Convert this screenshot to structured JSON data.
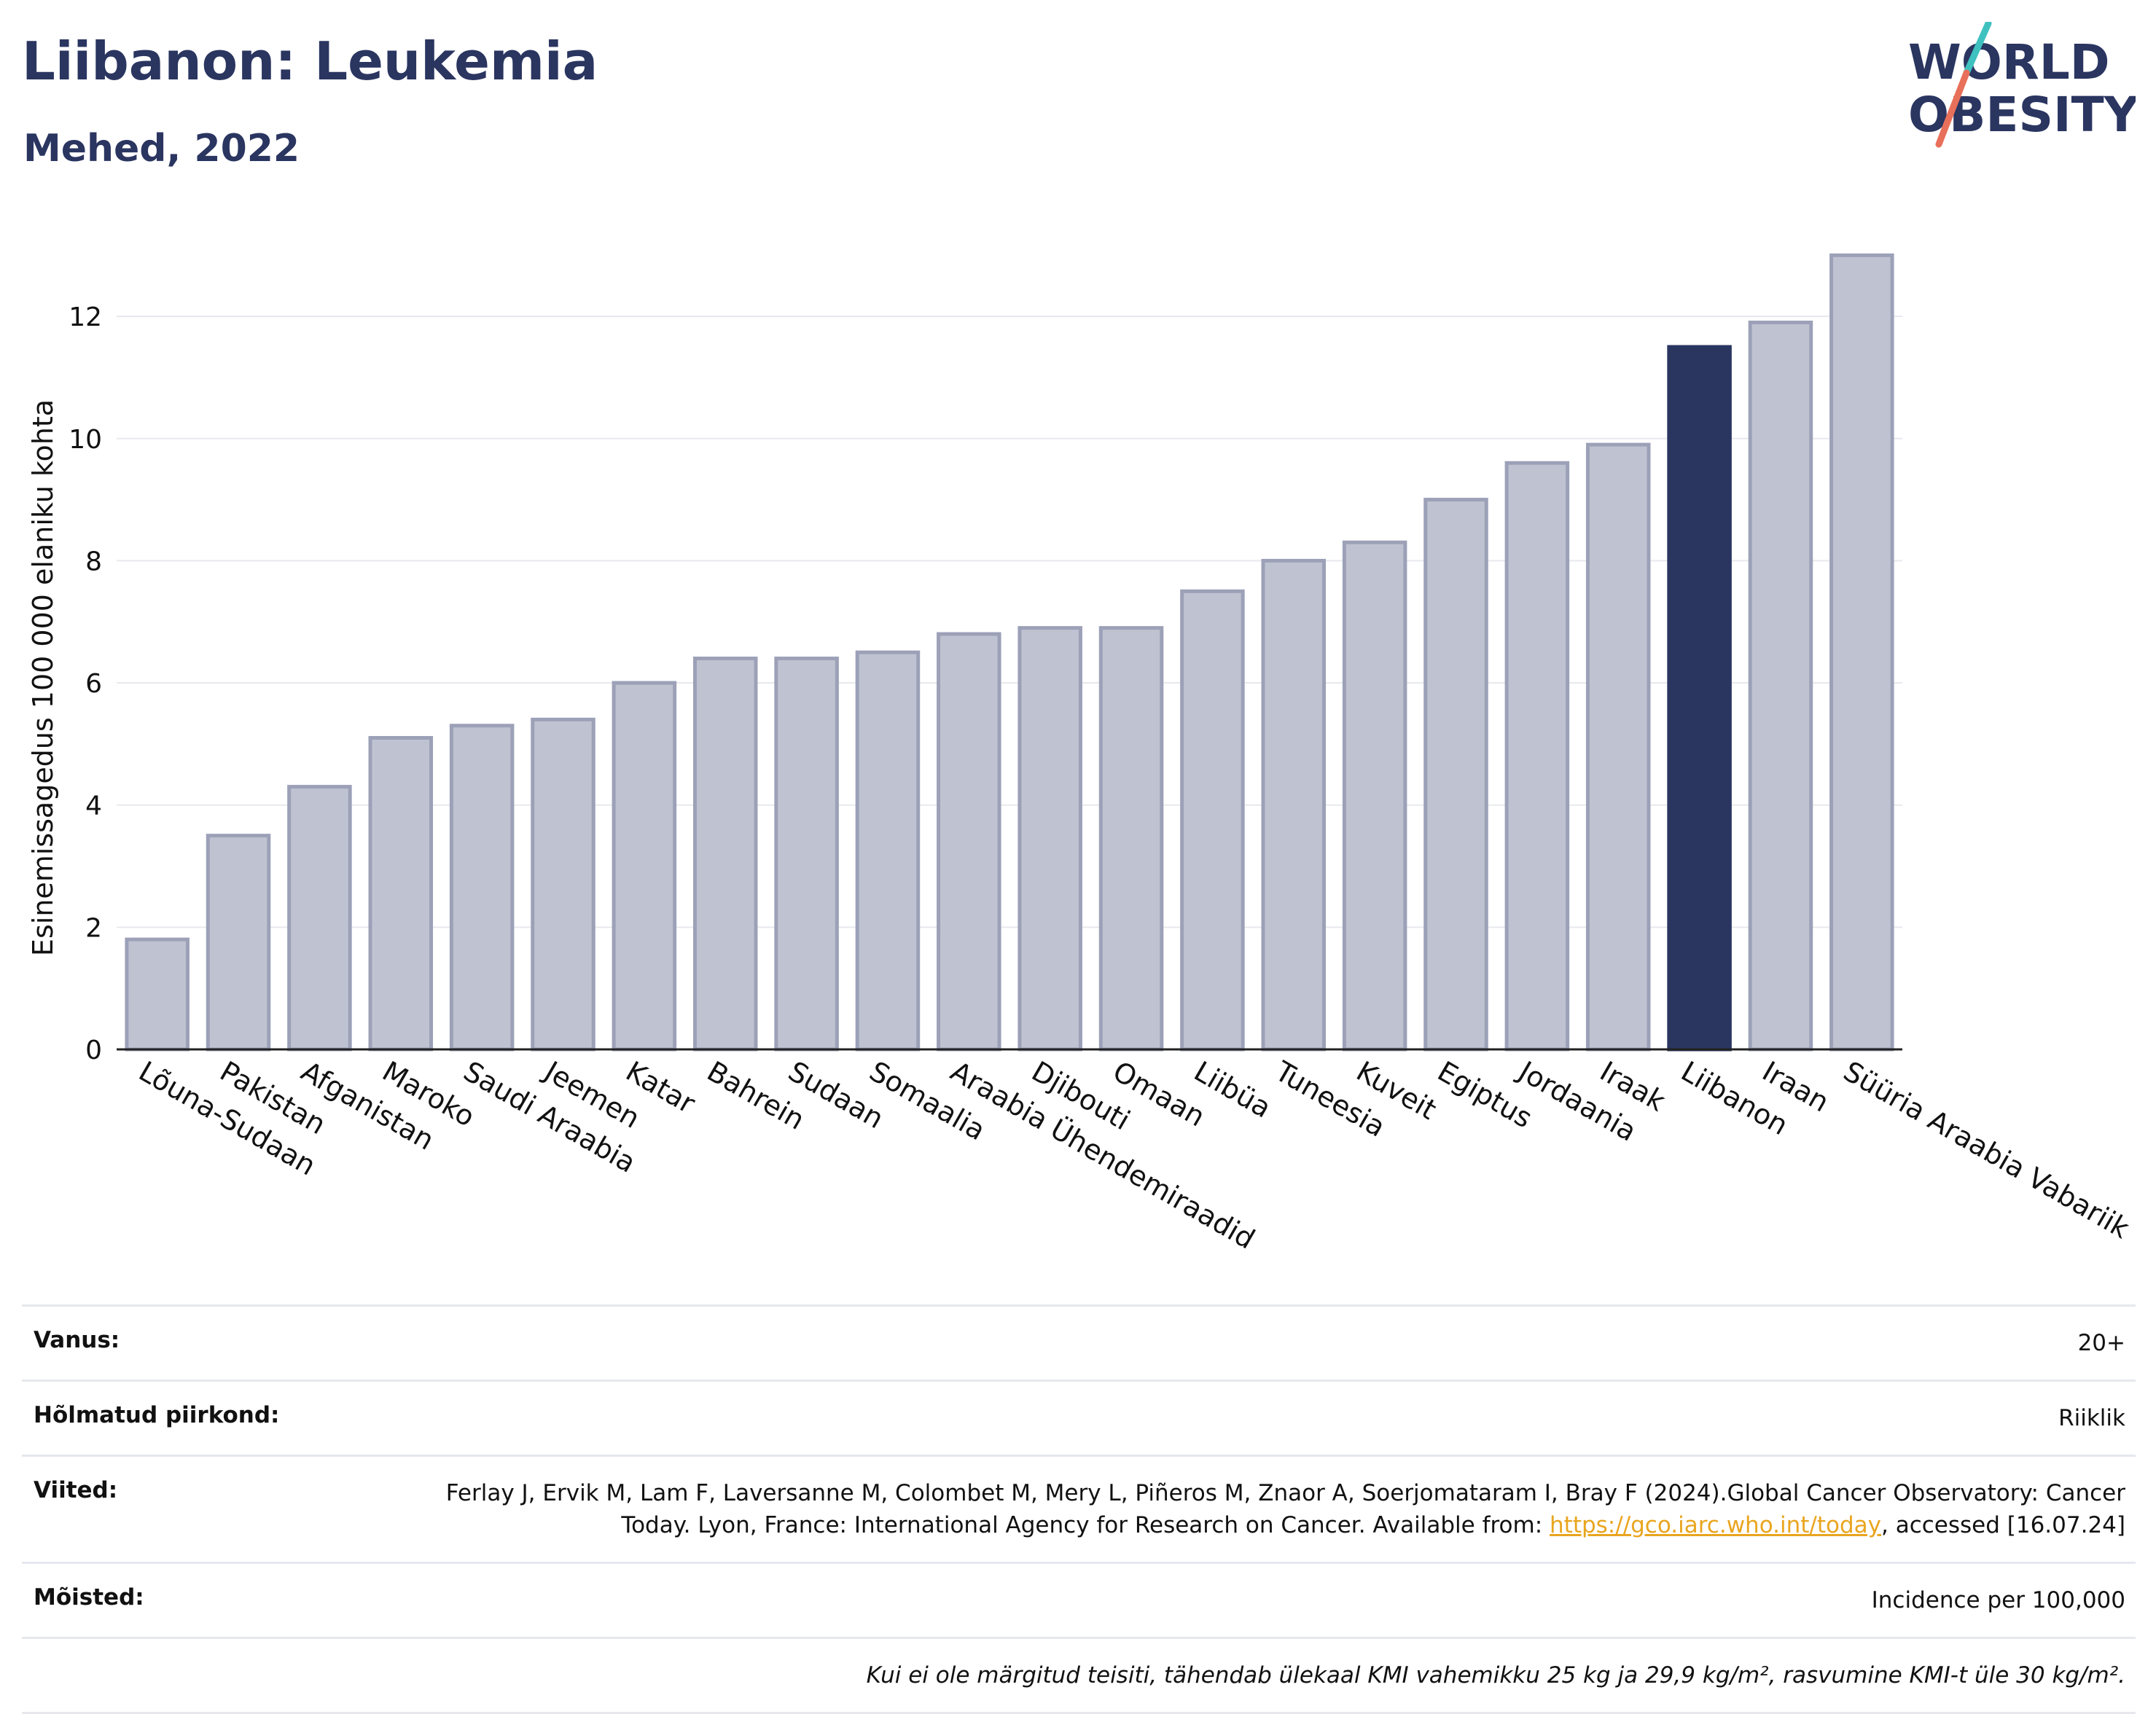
{
  "header": {
    "title": "Liibanon: Leukemia",
    "subtitle": "Mehed, 2022"
  },
  "logo": {
    "line1": "WORLD",
    "line2": "OBESITY",
    "colors": {
      "text": "#2a3560",
      "slash_teal": "#3fc1c0",
      "slash_coral": "#e8705a"
    }
  },
  "chart_data": {
    "type": "bar",
    "ylabel": "Esinemissagedus 100 000 elaniku kohta",
    "ylim": [
      0,
      13.6
    ],
    "yticks": [
      0,
      2,
      4,
      6,
      8,
      10,
      12
    ],
    "grid": true,
    "highlight": "Liibanon",
    "colors": {
      "bar": "#bfc3d1",
      "bar_edge": "#9ca1b8",
      "highlight": "#2a3560"
    },
    "categories": [
      "Lõuna-Sudaan",
      "Pakistan",
      "Afganistan",
      "Maroko",
      "Saudi Araabia",
      "Jeemen",
      "Katar",
      "Bahrein",
      "Sudaan",
      "Somaalia",
      "Araabia Ühendemiraadid",
      "Djibouti",
      "Omaan",
      "Liibüa",
      "Tuneesia",
      "Kuveit",
      "Egiptus",
      "Jordaania",
      "Iraak",
      "Liibanon",
      "Iraan",
      "Süüria Araabia Vabariik"
    ],
    "values": [
      1.8,
      3.5,
      4.3,
      5.1,
      5.3,
      5.4,
      6.0,
      6.4,
      6.4,
      6.5,
      6.8,
      6.9,
      6.9,
      7.5,
      8.0,
      8.3,
      9.0,
      9.6,
      9.9,
      11.5,
      11.9,
      13.0
    ]
  },
  "info": {
    "age_label": "Vanus:",
    "age_value": "20+",
    "region_label": "Hõlmatud piirkond:",
    "region_value": "Riiklik",
    "refs_label": "Viited:",
    "refs_text": "Ferlay J, Ervik M, Lam F, Laversanne M, Colombet M, Mery L, Piñeros M, Znaor A, Soerjomataram I, Bray F (2024).Global Cancer Observatory: Cancer Today. Lyon, France: International Agency for Research on Cancer. Available from: ",
    "refs_link": "https://gco.iarc.who.int/today",
    "refs_tail": ", accessed [16.07.24]",
    "defs_label": "Mõisted:",
    "defs_value": "Incidence per 100,000",
    "note": "Kui ei ole märgitud teisiti, tähendab ülekaal KMI vahemikku 25 kg ja 29,9 kg/m², rasvumine KMI-t üle 30 kg/m²."
  }
}
